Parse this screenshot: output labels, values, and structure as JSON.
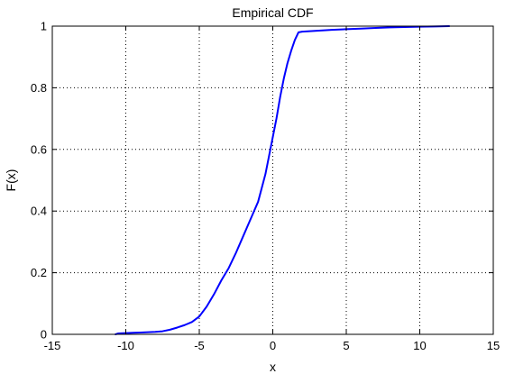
{
  "chart_data": {
    "type": "line",
    "title": "Empirical CDF",
    "xlabel": "x",
    "ylabel": "F(x)",
    "xlim": [
      -15,
      15
    ],
    "ylim": [
      0,
      1
    ],
    "xticks": [
      -15,
      -10,
      -5,
      0,
      5,
      10,
      15
    ],
    "yticks": [
      0,
      0.2,
      0.4,
      0.6,
      0.8,
      1
    ],
    "xtick_labels": [
      "-15",
      "-10",
      "-5",
      "0",
      "5",
      "10",
      "15"
    ],
    "ytick_labels": [
      "0",
      "0.2",
      "0.4",
      "0.6",
      "0.8",
      "1"
    ],
    "grid": true,
    "series": [
      {
        "color": "#0000ff",
        "x": [
          -10.7,
          -10.5,
          -10.0,
          -9.5,
          -9.0,
          -8.5,
          -8.0,
          -7.5,
          -7.0,
          -6.5,
          -6.0,
          -5.5,
          -5.0,
          -4.5,
          -4.0,
          -3.5,
          -3.0,
          -2.5,
          -2.0,
          -1.5,
          -1.0,
          -0.5,
          -0.25,
          0.0,
          0.25,
          0.5,
          0.75,
          1.0,
          1.25,
          1.5,
          1.75,
          2.0,
          3.0,
          4.0,
          5.0,
          6.0,
          7.0,
          8.0,
          9.0,
          10.0,
          11.0,
          12.0
        ],
        "y": [
          0.0,
          0.003,
          0.004,
          0.005,
          0.006,
          0.007,
          0.008,
          0.01,
          0.015,
          0.022,
          0.03,
          0.04,
          0.058,
          0.09,
          0.13,
          0.175,
          0.215,
          0.265,
          0.32,
          0.375,
          0.43,
          0.52,
          0.58,
          0.64,
          0.7,
          0.77,
          0.83,
          0.88,
          0.92,
          0.955,
          0.98,
          0.982,
          0.985,
          0.988,
          0.99,
          0.992,
          0.994,
          0.996,
          0.997,
          0.998,
          0.999,
          1.0
        ]
      }
    ]
  }
}
